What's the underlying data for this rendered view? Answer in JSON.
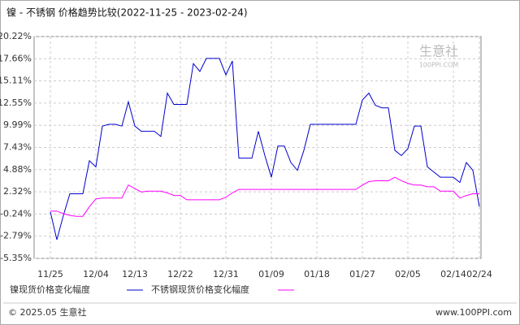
{
  "chart_data": {
    "type": "line",
    "title": "镍 - 不锈钢 价格趋势比较(2022-11-25 - 2023-02-24)",
    "watermark": "生意社",
    "watermark_sub": "100PPI.COM",
    "footer_left": "© 2025.05 生意社",
    "footer_right": "www.100PPI.com",
    "categories": [
      "11/25",
      null,
      null,
      null,
      null,
      null,
      null,
      "12/04",
      null,
      null,
      null,
      null,
      null,
      "12/13",
      null,
      null,
      null,
      null,
      null,
      null,
      "12/22",
      null,
      null,
      null,
      null,
      null,
      null,
      "12/31",
      null,
      null,
      null,
      null,
      null,
      null,
      "01/09",
      null,
      null,
      null,
      null,
      null,
      null,
      "01/18",
      null,
      null,
      null,
      null,
      null,
      null,
      "01/27",
      null,
      null,
      null,
      null,
      null,
      null,
      "02/05",
      null,
      null,
      null,
      null,
      null,
      null,
      "02/14",
      null,
      null,
      null,
      "02/24"
    ],
    "series": [
      {
        "name": "镍现货价格变化幅度",
        "color": "#0000cc",
        "values": [
          0.0,
          -3.2,
          -0.4,
          2.1,
          2.1,
          2.1,
          5.9,
          5.2,
          9.9,
          10.1,
          10.1,
          9.9,
          12.7,
          9.9,
          9.3,
          9.3,
          9.3,
          8.7,
          13.7,
          12.4,
          12.4,
          12.4,
          17.1,
          16.2,
          17.7,
          17.7,
          17.7,
          15.8,
          17.4,
          6.2,
          6.2,
          6.2,
          9.3,
          6.5,
          4.0,
          7.6,
          7.6,
          5.7,
          4.8,
          7.1,
          10.1,
          10.1,
          10.1,
          10.1,
          10.1,
          10.1,
          10.1,
          10.1,
          12.9,
          13.7,
          12.3,
          12.0,
          12.0,
          7.1,
          6.5,
          7.3,
          9.9,
          9.9,
          5.2,
          4.6,
          4.0,
          4.0,
          4.0,
          3.4,
          5.7,
          4.8,
          0.6
        ]
      },
      {
        "name": "不锈钢现货价格变化幅度",
        "color": "#ff00ff",
        "values": [
          0.1,
          0.1,
          -0.2,
          -0.4,
          -0.5,
          -0.5,
          0.6,
          1.5,
          1.6,
          1.6,
          1.6,
          1.6,
          3.1,
          2.7,
          2.3,
          2.4,
          2.4,
          2.4,
          2.2,
          1.9,
          1.9,
          1.4,
          1.4,
          1.4,
          1.4,
          1.4,
          1.4,
          1.7,
          2.2,
          2.6,
          2.6,
          2.6,
          2.6,
          2.6,
          2.6,
          2.6,
          2.6,
          2.6,
          2.6,
          2.6,
          2.6,
          2.6,
          2.6,
          2.6,
          2.6,
          2.6,
          2.6,
          2.6,
          3.1,
          3.5,
          3.6,
          3.6,
          3.6,
          4.0,
          3.6,
          3.3,
          3.1,
          3.1,
          2.9,
          2.9,
          2.4,
          2.4,
          2.4,
          1.6,
          1.9,
          2.1,
          2.1
        ]
      }
    ],
    "ylim": [
      -5.35,
      20.22
    ],
    "yticks": [
      {
        "value": -5.35,
        "label": "-5.35%"
      },
      {
        "value": -2.79,
        "label": "-2.79%"
      },
      {
        "value": -0.24,
        "label": "-0.24%"
      },
      {
        "value": 2.32,
        "label": "2.32%"
      },
      {
        "value": 4.88,
        "label": "4.88%"
      },
      {
        "value": 7.43,
        "label": "7.43%"
      },
      {
        "value": 9.99,
        "label": "9.99%"
      },
      {
        "value": 12.55,
        "label": "12.55%"
      },
      {
        "value": 15.11,
        "label": "15.11%"
      },
      {
        "value": 17.66,
        "label": "17.66%"
      },
      {
        "value": 20.22,
        "label": "20.22%"
      }
    ],
    "grid": true
  }
}
